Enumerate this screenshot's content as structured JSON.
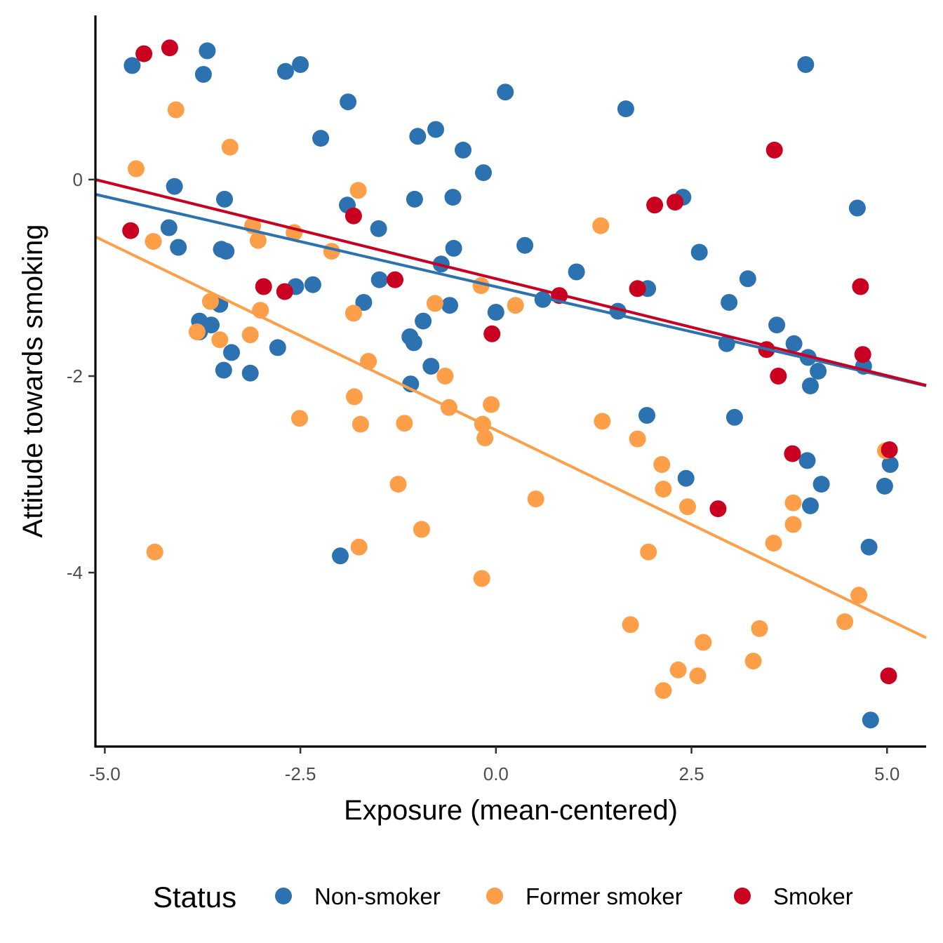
{
  "chart_data": {
    "type": "scatter",
    "title": "",
    "xlabel": "Exposure (mean-centered)",
    "ylabel": "Attitude towards smoking",
    "xlim": [
      -5.12,
      5.5
    ],
    "ylim": [
      -5.77,
      1.67
    ],
    "x_ticks": [
      -5.0,
      -2.5,
      0.0,
      2.5,
      5.0
    ],
    "x_tick_labels": [
      "-5.0",
      "-2.5",
      "0.0",
      "2.5",
      "5.0"
    ],
    "y_ticks": [
      0,
      -2,
      -4
    ],
    "y_tick_labels": [
      "0",
      "-2",
      "-4"
    ],
    "grid": false,
    "legend": {
      "title": "Status",
      "position": "bottom"
    },
    "series": [
      {
        "name": "Non-smoker",
        "color": "#2c72b0",
        "points": [
          [
            -4.65,
            1.16
          ],
          [
            -3.69,
            1.31
          ],
          [
            -3.74,
            1.07
          ],
          [
            -2.69,
            1.1
          ],
          [
            -2.5,
            1.17
          ],
          [
            -1.89,
            0.79
          ],
          [
            -2.24,
            0.42
          ],
          [
            -1.0,
            0.44
          ],
          [
            -0.77,
            0.51
          ],
          [
            -0.42,
            0.3
          ],
          [
            -0.16,
            0.07
          ],
          [
            0.12,
            0.89
          ],
          [
            1.66,
            0.72
          ],
          [
            3.96,
            1.17
          ],
          [
            -4.11,
            -0.07
          ],
          [
            -4.18,
            -0.49
          ],
          [
            -4.06,
            -0.69
          ],
          [
            -3.47,
            -0.2
          ],
          [
            -3.51,
            -0.71
          ],
          [
            -3.45,
            -0.73
          ],
          [
            -3.53,
            -1.27
          ],
          [
            -3.79,
            -1.44
          ],
          [
            -3.64,
            -1.48
          ],
          [
            -3.79,
            -1.55
          ],
          [
            -3.48,
            -1.94
          ],
          [
            -3.38,
            -1.76
          ],
          [
            -3.14,
            -1.97
          ],
          [
            -2.79,
            -1.71
          ],
          [
            -2.56,
            -1.09
          ],
          [
            -2.34,
            -1.07
          ],
          [
            -1.9,
            -0.26
          ],
          [
            -1.5,
            -0.5
          ],
          [
            -1.49,
            -1.02
          ],
          [
            -1.69,
            -1.25
          ],
          [
            -1.04,
            -0.2
          ],
          [
            -0.55,
            -0.18
          ],
          [
            -0.54,
            -0.7
          ],
          [
            -0.7,
            -0.86
          ],
          [
            -0.93,
            -1.44
          ],
          [
            -1.1,
            -1.6
          ],
          [
            -1.05,
            -1.66
          ],
          [
            -0.83,
            -1.9
          ],
          [
            -1.09,
            -2.08
          ],
          [
            -0.59,
            -1.28
          ],
          [
            0.0,
            -1.35
          ],
          [
            0.37,
            -0.67
          ],
          [
            0.6,
            -1.22
          ],
          [
            1.03,
            -0.94
          ],
          [
            1.56,
            -1.34
          ],
          [
            1.94,
            -1.11
          ],
          [
            2.39,
            -0.18
          ],
          [
            2.6,
            -0.74
          ],
          [
            2.95,
            -1.67
          ],
          [
            2.98,
            -1.25
          ],
          [
            3.22,
            -1.01
          ],
          [
            3.59,
            -1.48
          ],
          [
            3.81,
            -1.67
          ],
          [
            3.99,
            -1.81
          ],
          [
            4.12,
            -1.95
          ],
          [
            4.02,
            -2.1
          ],
          [
            4.62,
            -0.29
          ],
          [
            4.7,
            -1.9
          ],
          [
            1.93,
            -2.4
          ],
          [
            3.05,
            -2.42
          ],
          [
            3.98,
            -2.86
          ],
          [
            4.02,
            -3.32
          ],
          [
            4.16,
            -3.1
          ],
          [
            2.43,
            -3.04
          ],
          [
            4.97,
            -3.12
          ],
          [
            5.04,
            -2.9
          ],
          [
            4.77,
            -3.74
          ],
          [
            -1.99,
            -3.83
          ],
          [
            4.79,
            -5.5
          ]
        ]
      },
      {
        "name": "Former smoker",
        "color": "#fd9f48",
        "points": [
          [
            -4.09,
            0.71
          ],
          [
            -4.6,
            0.11
          ],
          [
            -3.4,
            0.33
          ],
          [
            -4.38,
            -0.63
          ],
          [
            -3.11,
            -0.47
          ],
          [
            -3.04,
            -0.62
          ],
          [
            -2.58,
            -0.54
          ],
          [
            -2.1,
            -0.73
          ],
          [
            -1.76,
            -0.11
          ],
          [
            -3.65,
            -1.24
          ],
          [
            -3.82,
            -1.55
          ],
          [
            -3.53,
            -1.63
          ],
          [
            -3.01,
            -1.33
          ],
          [
            -3.14,
            -1.58
          ],
          [
            -1.82,
            -1.36
          ],
          [
            -1.63,
            -1.85
          ],
          [
            -1.81,
            -2.21
          ],
          [
            -1.73,
            -2.49
          ],
          [
            -2.51,
            -2.43
          ],
          [
            -1.17,
            -2.48
          ],
          [
            -1.25,
            -3.1
          ],
          [
            -0.95,
            -3.56
          ],
          [
            -1.75,
            -3.74
          ],
          [
            -4.36,
            -3.79
          ],
          [
            -0.78,
            -1.26
          ],
          [
            -0.65,
            -2.0
          ],
          [
            -0.6,
            -2.32
          ],
          [
            -0.19,
            -1.08
          ],
          [
            -0.06,
            -2.29
          ],
          [
            -0.17,
            -2.49
          ],
          [
            -0.14,
            -2.63
          ],
          [
            0.25,
            -1.28
          ],
          [
            0.51,
            -3.25
          ],
          [
            -0.18,
            -4.06
          ],
          [
            1.34,
            -0.47
          ],
          [
            1.36,
            -2.46
          ],
          [
            1.81,
            -2.64
          ],
          [
            2.12,
            -2.9
          ],
          [
            2.14,
            -3.15
          ],
          [
            2.45,
            -3.33
          ],
          [
            1.95,
            -3.79
          ],
          [
            1.72,
            -4.53
          ],
          [
            2.65,
            -4.71
          ],
          [
            2.33,
            -4.99
          ],
          [
            2.58,
            -5.05
          ],
          [
            2.14,
            -5.2
          ],
          [
            3.37,
            -4.57
          ],
          [
            3.29,
            -4.9
          ],
          [
            3.8,
            -3.29
          ],
          [
            3.8,
            -3.51
          ],
          [
            3.55,
            -3.7
          ],
          [
            4.46,
            -4.5
          ],
          [
            4.64,
            -4.23
          ],
          [
            4.98,
            -2.76
          ]
        ]
      },
      {
        "name": "Smoker",
        "color": "#ca0020",
        "points": [
          [
            -4.5,
            1.28
          ],
          [
            -4.17,
            1.34
          ],
          [
            -4.67,
            -0.52
          ],
          [
            -1.82,
            -0.37
          ],
          [
            -2.97,
            -1.09
          ],
          [
            -2.7,
            -1.14
          ],
          [
            -1.29,
            -1.02
          ],
          [
            -0.05,
            -1.57
          ],
          [
            0.81,
            -1.18
          ],
          [
            1.81,
            -1.11
          ],
          [
            2.03,
            -0.26
          ],
          [
            2.29,
            -0.23
          ],
          [
            3.56,
            0.3
          ],
          [
            4.66,
            -1.09
          ],
          [
            3.46,
            -1.73
          ],
          [
            3.61,
            -2.0
          ],
          [
            4.69,
            -1.78
          ],
          [
            3.79,
            -2.79
          ],
          [
            2.84,
            -3.35
          ],
          [
            5.03,
            -2.75
          ],
          [
            5.02,
            -5.05
          ]
        ]
      }
    ],
    "fit_lines": [
      {
        "series": "Non-smoker",
        "color": "#2c72b0",
        "intercept": -1.09,
        "slope": -0.1835
      },
      {
        "series": "Former smoker",
        "color": "#fd9f48",
        "intercept": -2.55,
        "slope": -0.3842
      },
      {
        "series": "Smoker",
        "color": "#ca0020",
        "intercept": -1.01,
        "slope": -0.1972
      }
    ]
  }
}
